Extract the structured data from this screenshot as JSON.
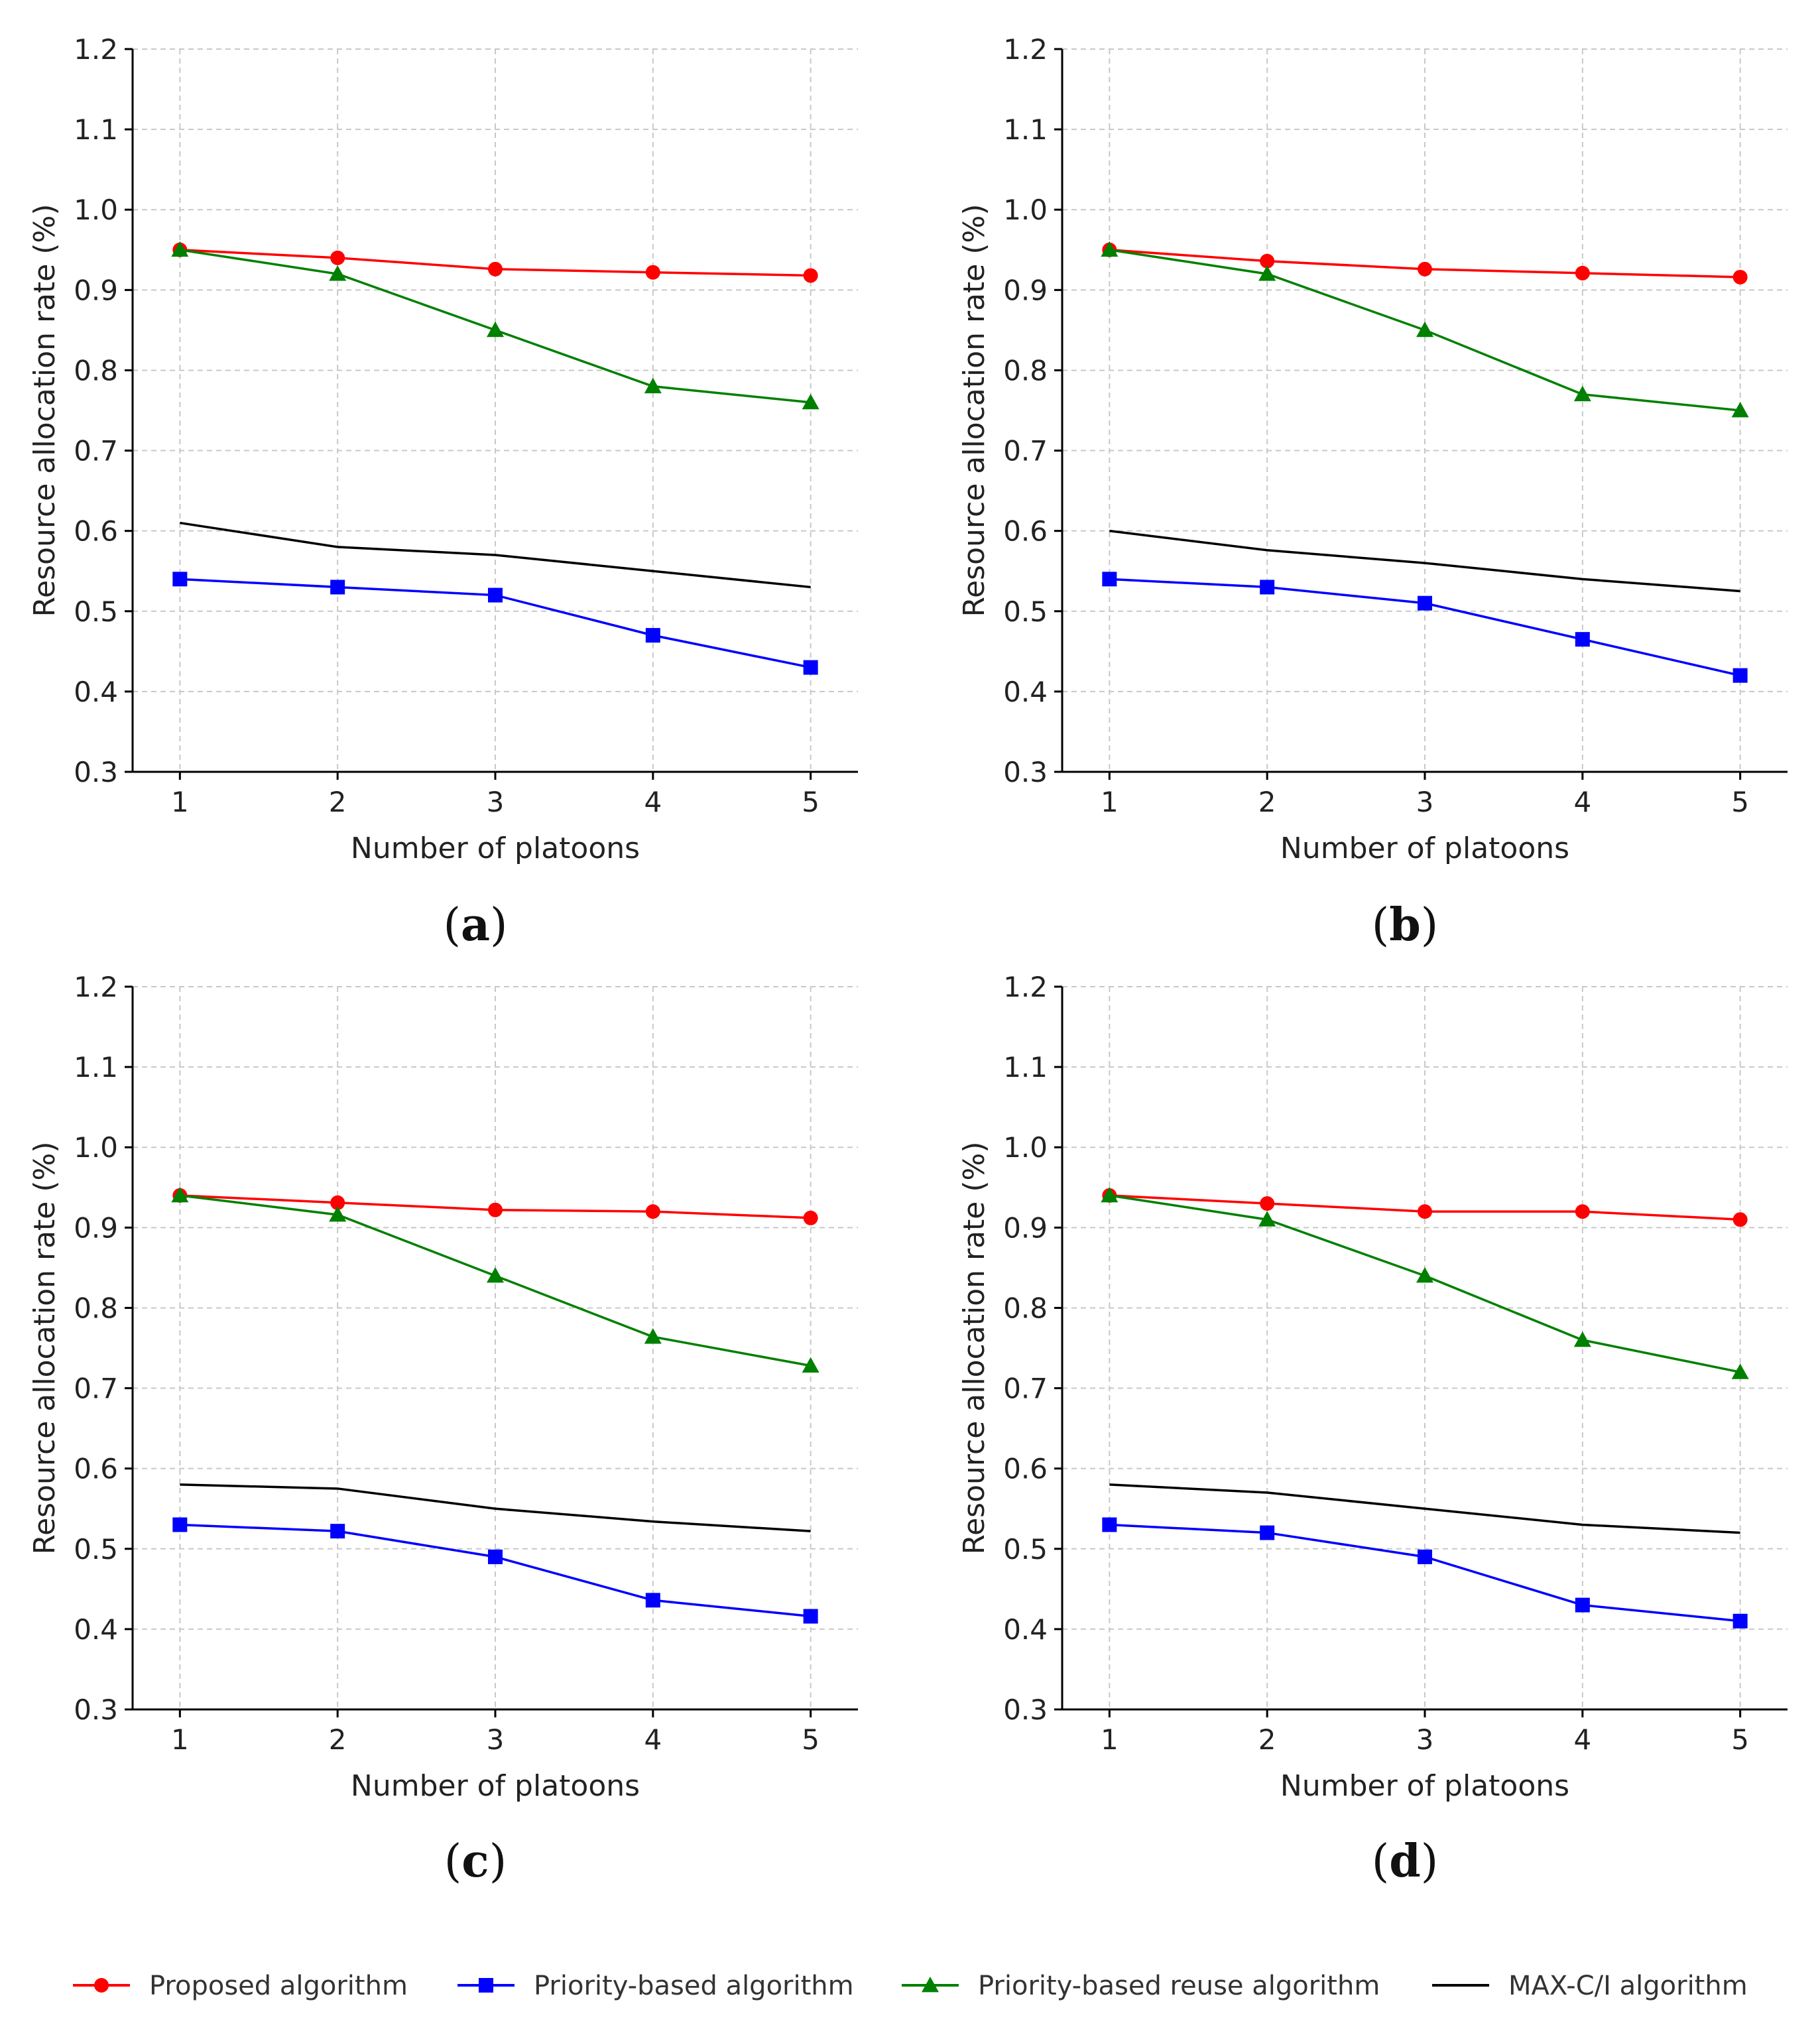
{
  "legend": [
    {
      "name": "Proposed algorithm",
      "color": "#ff0000",
      "marker": "circle"
    },
    {
      "name": "Priority-based algorithm",
      "color": "#0000ff",
      "marker": "square"
    },
    {
      "name": "Priority-based reuse algorithm",
      "color": "#008000",
      "marker": "triangle"
    },
    {
      "name": "MAX-C/I algorithm",
      "color": "#000000",
      "marker": "none"
    }
  ],
  "chart_data": [
    {
      "type": "line",
      "panel": "a",
      "xlabel": "Number of platoons",
      "ylabel": "Resource allocation rate (%)",
      "x": [
        1,
        2,
        3,
        4,
        5
      ],
      "xticks": [
        "1",
        "2",
        "3",
        "4",
        "5"
      ],
      "ylim": [
        0.3,
        1.2
      ],
      "yticks": [
        "0.3",
        "0.4",
        "0.5",
        "0.6",
        "0.7",
        "0.8",
        "0.9",
        "1.0",
        "1.1",
        "1.2"
      ],
      "grid": true,
      "series": [
        {
          "name": "Proposed algorithm",
          "values": [
            0.95,
            0.94,
            0.926,
            0.922,
            0.918
          ]
        },
        {
          "name": "Priority-based algorithm",
          "values": [
            0.54,
            0.53,
            0.52,
            0.47,
            0.43
          ]
        },
        {
          "name": "Priority-based reuse algorithm",
          "values": [
            0.95,
            0.92,
            0.85,
            0.78,
            0.76
          ]
        },
        {
          "name": "MAX-C/I algorithm",
          "values": [
            0.61,
            0.58,
            0.57,
            0.55,
            0.53
          ]
        }
      ]
    },
    {
      "type": "line",
      "panel": "b",
      "xlabel": "Number of platoons",
      "ylabel": "Resource allocation rate (%)",
      "x": [
        1,
        2,
        3,
        4,
        5
      ],
      "xticks": [
        "1",
        "2",
        "3",
        "4",
        "5"
      ],
      "ylim": [
        0.3,
        1.2
      ],
      "yticks": [
        "0.3",
        "0.4",
        "0.5",
        "0.6",
        "0.7",
        "0.8",
        "0.9",
        "1.0",
        "1.1",
        "1.2"
      ],
      "grid": true,
      "series": [
        {
          "name": "Proposed algorithm",
          "values": [
            0.95,
            0.936,
            0.926,
            0.921,
            0.916
          ]
        },
        {
          "name": "Priority-based algorithm",
          "values": [
            0.54,
            0.53,
            0.51,
            0.465,
            0.42
          ]
        },
        {
          "name": "Priority-based reuse algorithm",
          "values": [
            0.95,
            0.92,
            0.85,
            0.77,
            0.75
          ]
        },
        {
          "name": "MAX-C/I algorithm",
          "values": [
            0.6,
            0.576,
            0.56,
            0.54,
            0.525
          ]
        }
      ]
    },
    {
      "type": "line",
      "panel": "c",
      "xlabel": "Number of platoons",
      "ylabel": "Resource allocation rate (%)",
      "x": [
        1,
        2,
        3,
        4,
        5
      ],
      "xticks": [
        "1",
        "2",
        "3",
        "4",
        "5"
      ],
      "ylim": [
        0.3,
        1.2
      ],
      "yticks": [
        "0.3",
        "0.4",
        "0.5",
        "0.6",
        "0.7",
        "0.8",
        "0.9",
        "1.0",
        "1.1",
        "1.2"
      ],
      "grid": true,
      "series": [
        {
          "name": "Proposed algorithm",
          "values": [
            0.94,
            0.931,
            0.922,
            0.92,
            0.912
          ]
        },
        {
          "name": "Priority-based algorithm",
          "values": [
            0.53,
            0.522,
            0.49,
            0.436,
            0.416
          ]
        },
        {
          "name": "Priority-based reuse algorithm",
          "values": [
            0.94,
            0.916,
            0.84,
            0.764,
            0.728
          ]
        },
        {
          "name": "MAX-C/I algorithm",
          "values": [
            0.58,
            0.575,
            0.55,
            0.534,
            0.522
          ]
        }
      ]
    },
    {
      "type": "line",
      "panel": "d",
      "xlabel": "Number of platoons",
      "ylabel": "Resource allocation rate (%)",
      "x": [
        1,
        2,
        3,
        4,
        5
      ],
      "xticks": [
        "1",
        "2",
        "3",
        "4",
        "5"
      ],
      "ylim": [
        0.3,
        1.2
      ],
      "yticks": [
        "0.3",
        "0.4",
        "0.5",
        "0.6",
        "0.7",
        "0.8",
        "0.9",
        "1.0",
        "1.1",
        "1.2"
      ],
      "grid": true,
      "series": [
        {
          "name": "Proposed algorithm",
          "values": [
            0.94,
            0.93,
            0.92,
            0.92,
            0.91
          ]
        },
        {
          "name": "Priority-based algorithm",
          "values": [
            0.53,
            0.52,
            0.49,
            0.43,
            0.41
          ]
        },
        {
          "name": "Priority-based reuse algorithm",
          "values": [
            0.94,
            0.91,
            0.84,
            0.76,
            0.72
          ]
        },
        {
          "name": "MAX-C/I algorithm",
          "values": [
            0.58,
            0.57,
            0.55,
            0.53,
            0.52
          ]
        }
      ]
    }
  ]
}
